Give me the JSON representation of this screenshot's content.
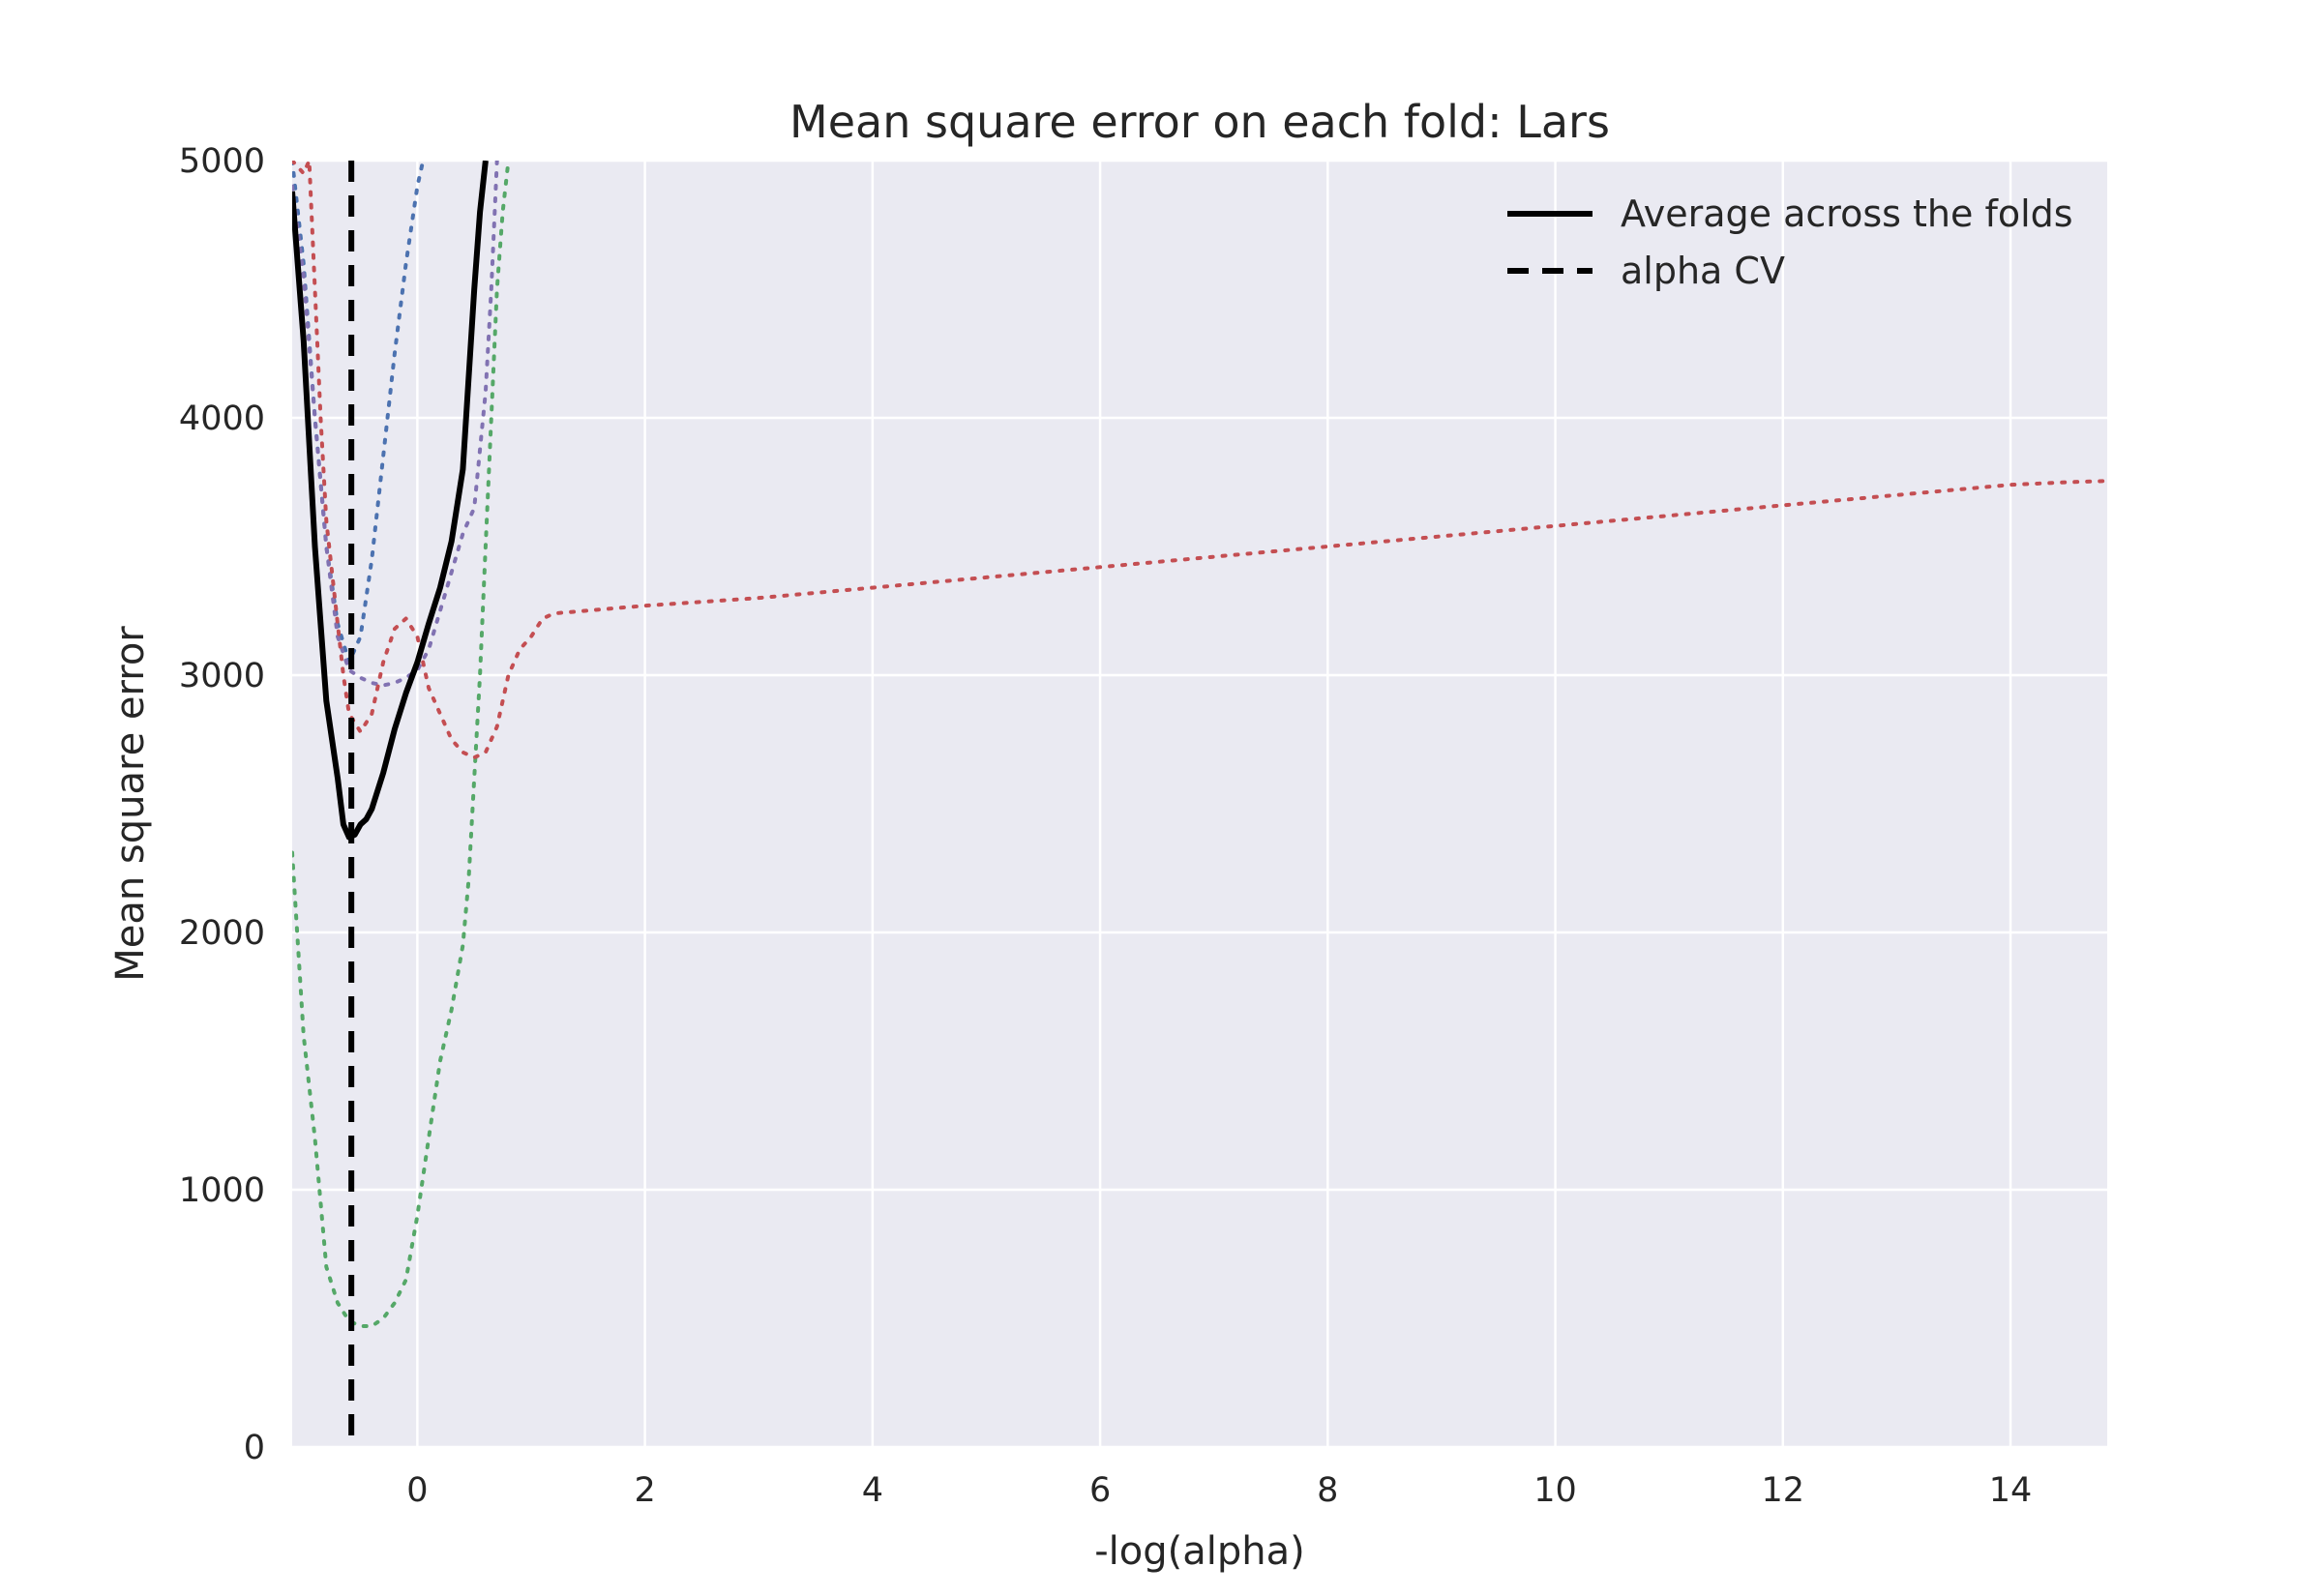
{
  "chart_data": {
    "type": "line",
    "title": "Mean square error on each fold: Lars",
    "xlabel": "-log(alpha)",
    "ylabel": "Mean square error",
    "xlim": [
      -1.1,
      14.85
    ],
    "ylim": [
      0,
      5000
    ],
    "xticks": [
      "0",
      "2",
      "4",
      "6",
      "8",
      "10",
      "12",
      "14"
    ],
    "yticks": [
      "0",
      "1000",
      "2000",
      "3000",
      "4000",
      "5000"
    ],
    "grid": true,
    "legend": {
      "placement": "upper right",
      "entries": [
        "Average across the folds",
        "alpha CV"
      ]
    },
    "colors": {
      "background": "#EAEAF2",
      "grid": "#FFFFFF",
      "fold_blue": "#4C72B0",
      "fold_green": "#55A868",
      "fold_red": "#C44E52",
      "fold_purple": "#8172B2",
      "average": "#000000"
    },
    "alpha_cv": -0.58,
    "series": [
      {
        "name": "Average across the folds",
        "color": "#000000",
        "style": "solid",
        "x": [
          -1.1,
          -1.0,
          -0.9,
          -0.8,
          -0.7,
          -0.65,
          -0.6,
          -0.55,
          -0.5,
          -0.45,
          -0.4,
          -0.3,
          -0.2,
          -0.1,
          0.0,
          0.1,
          0.2,
          0.3,
          0.4,
          0.45,
          0.5,
          0.55,
          0.6
        ],
        "y": [
          4880,
          4300,
          3500,
          2900,
          2600,
          2420,
          2370,
          2380,
          2420,
          2440,
          2480,
          2620,
          2790,
          2930,
          3050,
          3200,
          3340,
          3520,
          3800,
          4150,
          4500,
          4800,
          5000
        ]
      },
      {
        "color": "#4C72B0",
        "style": "dotted",
        "x": [
          -1.1,
          -1.0,
          -0.9,
          -0.8,
          -0.7,
          -0.6,
          -0.5,
          -0.4,
          -0.3,
          -0.2,
          -0.1,
          0.0,
          0.05
        ],
        "y": [
          5000,
          4600,
          4000,
          3500,
          3200,
          3050,
          3150,
          3450,
          3850,
          4250,
          4600,
          4900,
          5000
        ]
      },
      {
        "color": "#8172B2",
        "style": "dotted",
        "x": [
          -1.1,
          -1.0,
          -0.9,
          -0.8,
          -0.7,
          -0.6,
          -0.5,
          -0.4,
          -0.3,
          -0.2,
          -0.1,
          0.0,
          0.1,
          0.2,
          0.3,
          0.4,
          0.5,
          0.6,
          0.65,
          0.7
        ],
        "y": [
          4900,
          4550,
          4000,
          3500,
          3150,
          3020,
          2990,
          2970,
          2960,
          2970,
          2990,
          3020,
          3100,
          3250,
          3400,
          3550,
          3650,
          4100,
          4500,
          5000
        ]
      },
      {
        "color": "#55A868",
        "style": "dotted",
        "x": [
          -1.1,
          -1.0,
          -0.9,
          -0.8,
          -0.7,
          -0.6,
          -0.5,
          -0.4,
          -0.3,
          -0.2,
          -0.1,
          0.0,
          0.1,
          0.2,
          0.3,
          0.4,
          0.45,
          0.5,
          0.55,
          0.6,
          0.65,
          0.7,
          0.75,
          0.8
        ],
        "y": [
          2310,
          1600,
          1200,
          700,
          560,
          490,
          470,
          470,
          500,
          560,
          650,
          900,
          1200,
          1500,
          1700,
          1950,
          2200,
          2600,
          3000,
          3500,
          4000,
          4500,
          4800,
          5000
        ]
      },
      {
        "color": "#C44E52",
        "style": "dotted",
        "x": [
          -1.1,
          -1.0,
          -0.95,
          -0.9,
          -0.85,
          -0.8,
          -0.7,
          -0.65,
          -0.6,
          -0.5,
          -0.4,
          -0.3,
          -0.2,
          -0.1,
          0.0,
          0.1,
          0.2,
          0.3,
          0.4,
          0.5,
          0.6,
          0.7,
          0.8,
          0.9,
          1.0,
          1.1,
          1.2,
          2.0,
          3.0,
          4.0,
          5.0,
          6.0,
          7.0,
          8.0,
          9.0,
          10.0,
          11.0,
          12.0,
          13.0,
          14.0,
          14.5,
          14.85
        ],
        "y": [
          5000,
          4950,
          5000,
          4500,
          4000,
          3600,
          3200,
          3000,
          2850,
          2780,
          2850,
          3050,
          3180,
          3220,
          3150,
          2950,
          2850,
          2750,
          2700,
          2680,
          2700,
          2800,
          3000,
          3100,
          3150,
          3220,
          3240,
          3270,
          3300,
          3340,
          3380,
          3420,
          3460,
          3500,
          3540,
          3580,
          3620,
          3660,
          3700,
          3740,
          3750,
          3755
        ]
      }
    ]
  }
}
